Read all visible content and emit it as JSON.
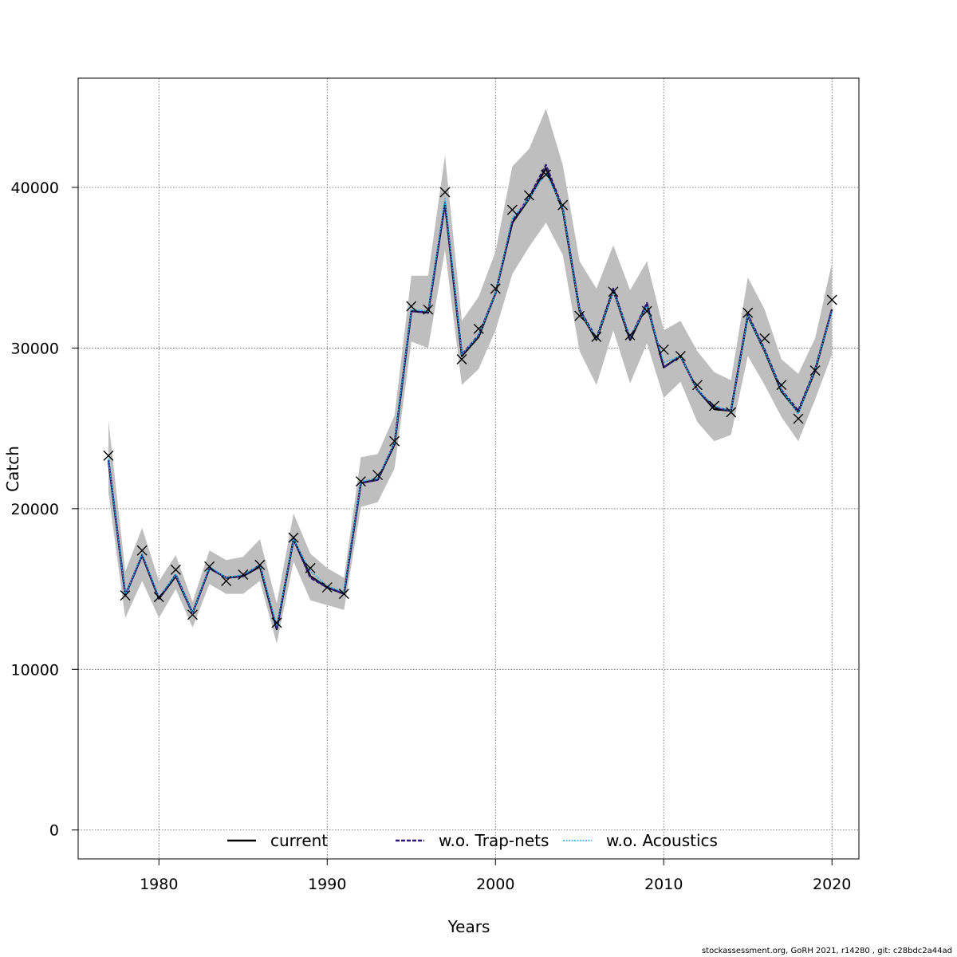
{
  "chart_data": {
    "type": "line",
    "xlabel": "Years",
    "ylabel": "Catch",
    "xlim": [
      1975.2,
      2021.6
    ],
    "ylim": [
      -1800,
      46800
    ],
    "x_ticks": [
      1980,
      1990,
      2000,
      2010,
      2020
    ],
    "y_ticks": [
      0,
      10000,
      20000,
      30000,
      40000
    ],
    "grid": true,
    "legend_position": "bottom",
    "x": [
      1977,
      1978,
      1979,
      1980,
      1981,
      1982,
      1983,
      1984,
      1985,
      1986,
      1987,
      1988,
      1989,
      1990,
      1991,
      1992,
      1993,
      1994,
      1995,
      1996,
      1997,
      1998,
      1999,
      2000,
      2001,
      2002,
      2003,
      2004,
      2005,
      2006,
      2007,
      2008,
      2009,
      2010,
      2011,
      2012,
      2013,
      2014,
      2015,
      2016,
      2017,
      2018,
      2019,
      2020
    ],
    "band": {
      "color": "#bebebe",
      "lower": [
        21000,
        13200,
        15500,
        13200,
        15000,
        12600,
        15300,
        14700,
        14700,
        15500,
        11600,
        16700,
        14300,
        14000,
        13700,
        20100,
        20400,
        22500,
        30400,
        30000,
        36100,
        27700,
        28700,
        31100,
        34600,
        36300,
        37800,
        35800,
        29800,
        27700,
        31100,
        27800,
        30300,
        26900,
        27900,
        25400,
        24200,
        24600,
        29500,
        27700,
        25700,
        24200,
        26800,
        29600
      ],
      "upper": [
        25500,
        16100,
        18800,
        15500,
        17100,
        14200,
        17400,
        16800,
        17000,
        18100,
        14100,
        19700,
        17200,
        16300,
        15700,
        23200,
        23400,
        25800,
        34500,
        34500,
        42000,
        31700,
        33200,
        36000,
        41300,
        42400,
        44900,
        41400,
        35400,
        33700,
        36400,
        33600,
        35400,
        31100,
        31700,
        29800,
        28500,
        28000,
        34400,
        32400,
        29300,
        28400,
        30600,
        35300
      ]
    },
    "series": [
      {
        "name": "current",
        "color": "#000000",
        "values": [
          23000,
          14600,
          17100,
          14400,
          15800,
          13500,
          16300,
          15700,
          15800,
          16400,
          12500,
          18100,
          15800,
          15100,
          14700,
          21600,
          21800,
          24000,
          32300,
          32200,
          39000,
          29500,
          30700,
          33400,
          37800,
          39300,
          41200,
          38600,
          32300,
          30500,
          33600,
          30500,
          32700,
          28800,
          29500,
          27400,
          26200,
          26100,
          32000,
          29800,
          27300,
          26000,
          28600,
          32400
        ]
      },
      {
        "name": "w.o. Trap-nets",
        "color": "#2e1a7a",
        "values": [
          23000,
          14600,
          17100,
          14400,
          15900,
          13500,
          16300,
          15700,
          15800,
          16500,
          12500,
          18100,
          15700,
          15100,
          14700,
          21600,
          21800,
          24100,
          32300,
          32200,
          39000,
          29600,
          30800,
          33400,
          37900,
          39400,
          41400,
          38700,
          32400,
          30600,
          33700,
          30600,
          32800,
          28800,
          29500,
          27400,
          26300,
          26100,
          32100,
          29900,
          27400,
          26100,
          28700,
          32400
        ]
      },
      {
        "name": "w.o. Acoustics",
        "color": "#29a8e0",
        "values": [
          23100,
          14600,
          17200,
          14500,
          15900,
          13500,
          16400,
          15700,
          15900,
          16500,
          12700,
          18100,
          16100,
          15200,
          14800,
          21700,
          21900,
          24100,
          32400,
          32300,
          39300,
          29600,
          30800,
          33400,
          38100,
          39300,
          40900,
          38700,
          32300,
          30600,
          33500,
          30700,
          32600,
          29100,
          29500,
          27400,
          26400,
          26100,
          32000,
          29800,
          27400,
          25900,
          28700,
          32300
        ]
      }
    ],
    "observations": {
      "marker": "x",
      "values": [
        23300,
        14600,
        17400,
        14500,
        16200,
        13400,
        16400,
        15500,
        15900,
        16500,
        12900,
        18200,
        16300,
        15100,
        14700,
        21700,
        22100,
        24200,
        32600,
        32400,
        39700,
        29300,
        31200,
        33700,
        38600,
        39500,
        40800,
        38900,
        32000,
        30700,
        33500,
        30800,
        32300,
        29900,
        29500,
        27700,
        26400,
        26000,
        32200,
        30600,
        27700,
        25600,
        28600,
        33000
      ]
    },
    "legend": [
      "current",
      "w.o. Trap-nets",
      "w.o. Acoustics"
    ]
  },
  "footer": "stockassessment.org, GoRH  2021, r14280 , git: c28bdc2a44ad"
}
